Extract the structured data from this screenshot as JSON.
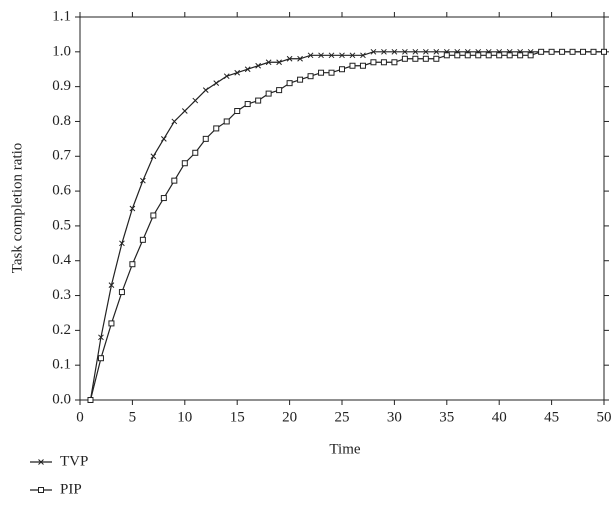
{
  "chart_data": {
    "type": "line",
    "x_label": "Time",
    "y_label": "Task completion ratio",
    "x": [
      1,
      2,
      3,
      4,
      5,
      6,
      7,
      8,
      9,
      10,
      11,
      12,
      13,
      14,
      15,
      16,
      17,
      18,
      19,
      20,
      21,
      22,
      23,
      24,
      25,
      26,
      27,
      28,
      29,
      30,
      31,
      32,
      33,
      34,
      35,
      36,
      37,
      38,
      39,
      40,
      41,
      42,
      43,
      44,
      45,
      46,
      47,
      48,
      49,
      50
    ],
    "series": [
      {
        "name": "TVP",
        "color": "#222222",
        "marker": "x",
        "values": [
          0,
          0.18,
          0.33,
          0.45,
          0.55,
          0.63,
          0.7,
          0.75,
          0.8,
          0.83,
          0.86,
          0.89,
          0.91,
          0.93,
          0.94,
          0.95,
          0.96,
          0.97,
          0.97,
          0.98,
          0.98,
          0.99,
          0.99,
          0.99,
          0.99,
          0.99,
          0.99,
          1.0,
          1.0,
          1.0,
          1.0,
          1.0,
          1.0,
          1.0,
          1.0,
          1.0,
          1.0,
          1.0,
          1.0,
          1.0,
          1.0,
          1.0,
          1.0,
          1.0,
          1.0,
          1.0,
          1.0,
          1.0,
          1.0,
          1.0
        ]
      },
      {
        "name": "PIP",
        "color": "#222222",
        "marker": "square",
        "values": [
          0,
          0.12,
          0.22,
          0.31,
          0.39,
          0.46,
          0.53,
          0.58,
          0.63,
          0.68,
          0.71,
          0.75,
          0.78,
          0.8,
          0.83,
          0.85,
          0.86,
          0.88,
          0.89,
          0.91,
          0.92,
          0.93,
          0.94,
          0.94,
          0.95,
          0.96,
          0.96,
          0.97,
          0.97,
          0.97,
          0.98,
          0.98,
          0.98,
          0.98,
          0.99,
          0.99,
          0.99,
          0.99,
          0.99,
          0.99,
          0.99,
          0.99,
          0.99,
          1.0,
          1.0,
          1.0,
          1.0,
          1.0,
          1.0,
          1.0
        ]
      }
    ],
    "xlim": [
      0,
      50
    ],
    "xticks": [
      0,
      5,
      10,
      15,
      20,
      25,
      30,
      35,
      40,
      45,
      50
    ],
    "ylim": [
      0,
      1.1
    ],
    "yticks": [
      {
        "value": 0,
        "label": "0.0"
      },
      0.1,
      0.2,
      0.3,
      0.4,
      0.5,
      0.6,
      0.7,
      0.8,
      0.9,
      {
        "value": 1,
        "label": "1.0"
      },
      1.1
    ],
    "grid": false,
    "legend": "bottom-left"
  }
}
